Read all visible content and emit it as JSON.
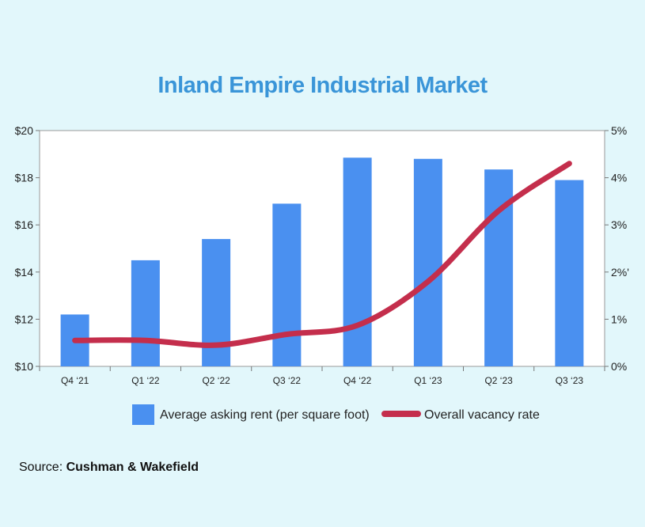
{
  "chart_data": {
    "type": "bar",
    "title": "Inland Empire Industrial Market",
    "categories": [
      "Q4 ‘21",
      "Q1 ‘22",
      "Q2 ‘22",
      "Q3 ‘22",
      "Q4 ‘22",
      "Q1 ‘23",
      "Q2 ‘23",
      "Q3 ‘23"
    ],
    "series": [
      {
        "name": "Average asking rent (per square foot)",
        "type": "bar",
        "axis": "left",
        "color": "#4a90f0",
        "values": [
          12.2,
          14.5,
          15.4,
          16.9,
          18.85,
          18.8,
          18.35,
          17.9
        ]
      },
      {
        "name": "Overall vacancy rate",
        "type": "line",
        "axis": "right",
        "color": "#c42e4c",
        "values": [
          0.55,
          0.55,
          0.45,
          0.68,
          0.87,
          1.8,
          3.3,
          4.3
        ]
      }
    ],
    "left_axis": {
      "ylim": [
        10,
        20
      ],
      "ticks": [
        10,
        12,
        14,
        16,
        18,
        20
      ],
      "tick_labels": [
        "$10",
        "$12",
        "$14",
        "$16",
        "$18",
        "$20"
      ]
    },
    "right_axis": {
      "ylim": [
        0,
        5
      ],
      "ticks": [
        0,
        1,
        2,
        3,
        4,
        5
      ],
      "tick_labels": [
        "0%",
        "1%",
        "2%'",
        "3%",
        "4%",
        "5%"
      ]
    },
    "legend_position": "bottom",
    "grid": false
  },
  "source": {
    "prefix": "Source: ",
    "name": "Cushman & Wakefield"
  }
}
